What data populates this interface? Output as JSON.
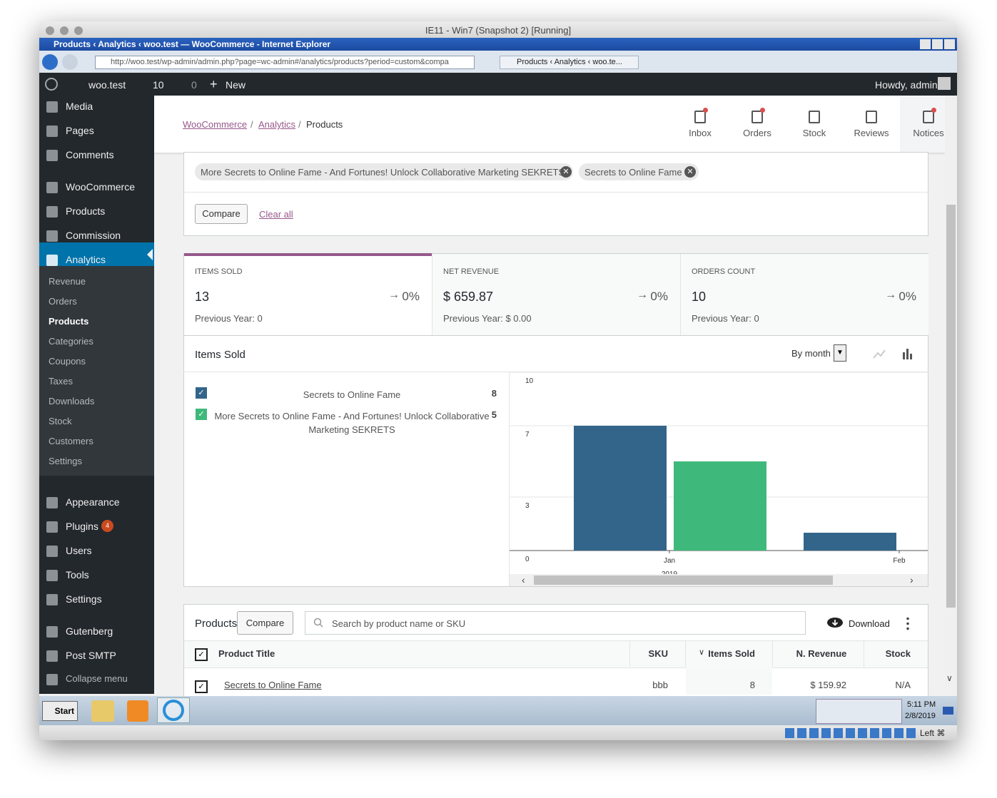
{
  "vm_window": {
    "title": "IE11 - Win7 (Snapshot 2) [Running]"
  },
  "browser": {
    "title": "Products ‹ Analytics ‹ woo.test — WooCommerce - Internet Explorer",
    "address": "http://woo.test/wp-admin/admin.php?page=wc-admin#/analytics/products?period=custom&compa",
    "tab": "Products ‹ Analytics ‹ woo.te..."
  },
  "admin_bar": {
    "site": "woo.test",
    "updates": "10",
    "comments": "0",
    "new": "New",
    "greeting": "Howdy, admin"
  },
  "sidebar": {
    "menu": [
      "Media",
      "Pages",
      "Comments",
      "WooCommerce",
      "Products",
      "Commission",
      "Analytics",
      "Appearance",
      "Plugins",
      "Users",
      "Tools",
      "Settings",
      "Gutenberg",
      "Post SMTP",
      "Collapse menu"
    ],
    "plugins_badge": "4",
    "submenu": [
      "Revenue",
      "Orders",
      "Products",
      "Categories",
      "Coupons",
      "Taxes",
      "Downloads",
      "Stock",
      "Customers",
      "Settings"
    ]
  },
  "header": {
    "breadcrumb": [
      "WooCommerce",
      "Analytics",
      "Products"
    ],
    "actions": [
      "Inbox",
      "Orders",
      "Stock",
      "Reviews",
      "Notices"
    ]
  },
  "filters": {
    "chips": [
      "More Secrets to Online Fame - And Fortunes! Unlock Collaborative Marketing SEKRETS",
      "Secrets to Online Fame"
    ],
    "compare": "Compare",
    "clear": "Clear all"
  },
  "summary": [
    {
      "label": "ITEMS SOLD",
      "value": "13",
      "delta": "0%",
      "previous": "Previous Year: 0"
    },
    {
      "label": "NET REVENUE",
      "value": "$ 659.87",
      "delta": "0%",
      "previous": "Previous Year: $ 0.00"
    },
    {
      "label": "ORDERS COUNT",
      "value": "10",
      "delta": "0%",
      "previous": "Previous Year: 0"
    }
  ],
  "chart_panel": {
    "title": "Items Sold",
    "interval": "By month",
    "legend_totals": [
      "8",
      "5"
    ]
  },
  "chart_data": {
    "type": "bar",
    "categories": [
      "Jan",
      "Feb"
    ],
    "year": "2019",
    "series": [
      {
        "name": "Secrets to Online Fame",
        "color": "#33658a",
        "values": [
          7,
          1
        ]
      },
      {
        "name": "More Secrets to Online Fame - And Fortunes! Unlock Collaborative Marketing SEKRETS",
        "color": "#3eb97b",
        "values": [
          5,
          0
        ]
      }
    ],
    "ylim": [
      0,
      10
    ],
    "yticks": [
      0,
      3,
      7,
      10
    ],
    "grid": true
  },
  "table": {
    "title": "Products",
    "compare": "Compare",
    "search": "Search by product name or SKU",
    "download": "Download",
    "columns": [
      "Product Title",
      "SKU",
      "Items Sold",
      "N. Revenue",
      "Stock"
    ],
    "rows": [
      [
        "Secrets to Online Fame",
        "bbb",
        "8",
        "$ 159.92",
        "N/A"
      ]
    ]
  },
  "taskbar": {
    "start": "Start",
    "time": "5:11 PM",
    "date": "2/8/2019"
  },
  "status": {
    "host_key": "Left ⌘"
  }
}
